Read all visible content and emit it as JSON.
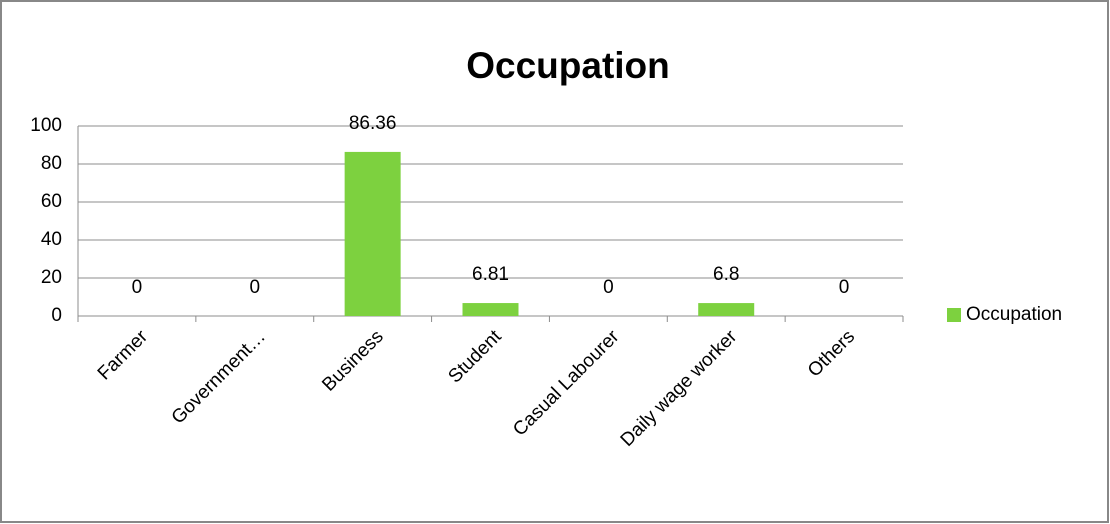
{
  "chart_data": {
    "type": "bar",
    "title": "Occupation",
    "categories": [
      "Farmer",
      "Government…",
      "Business",
      "Student",
      "Casual Labourer",
      "Daily wage worker",
      "Others"
    ],
    "series": [
      {
        "name": "Occupation",
        "color": "#7dd13f",
        "values": [
          0,
          0,
          86.36,
          6.81,
          0,
          6.8,
          0
        ]
      }
    ],
    "ylim": [
      0,
      100
    ],
    "yticks": [
      0,
      20,
      40,
      60,
      80,
      100
    ],
    "grid": true,
    "legend": "right"
  }
}
